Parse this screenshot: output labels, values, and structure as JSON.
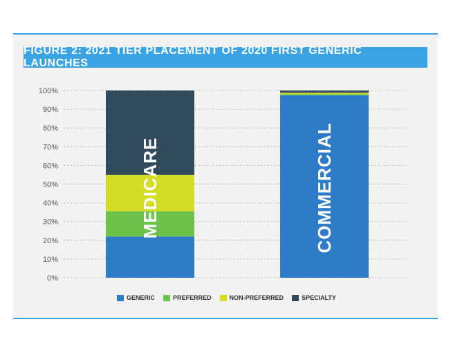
{
  "chart_data": {
    "type": "bar",
    "stacked": true,
    "title": "FIGURE 2: 2021 TIER PLACEMENT OF 2020 FIRST GENERIC LAUNCHES",
    "categories": [
      "MEDICARE",
      "COMMERCIAL"
    ],
    "series": [
      {
        "name": "GENERIC",
        "color": "#2e7cc7",
        "values": [
          22,
          97.5
        ]
      },
      {
        "name": "PREFERRED",
        "color": "#6cc24a",
        "values": [
          13.5,
          0.5
        ]
      },
      {
        "name": "NON-PREFERRED",
        "color": "#d4dd26",
        "values": [
          19.5,
          0.8
        ]
      },
      {
        "name": "SPECIALTY",
        "color": "#314a5c",
        "values": [
          45,
          1.2
        ]
      }
    ],
    "yticks": [
      "0%",
      "10%",
      "20%",
      "30%",
      "40%",
      "50%",
      "60%",
      "70%",
      "80%",
      "90%",
      "100%"
    ],
    "ylim": [
      0,
      100
    ],
    "grid": true,
    "legend_position": "bottom"
  }
}
